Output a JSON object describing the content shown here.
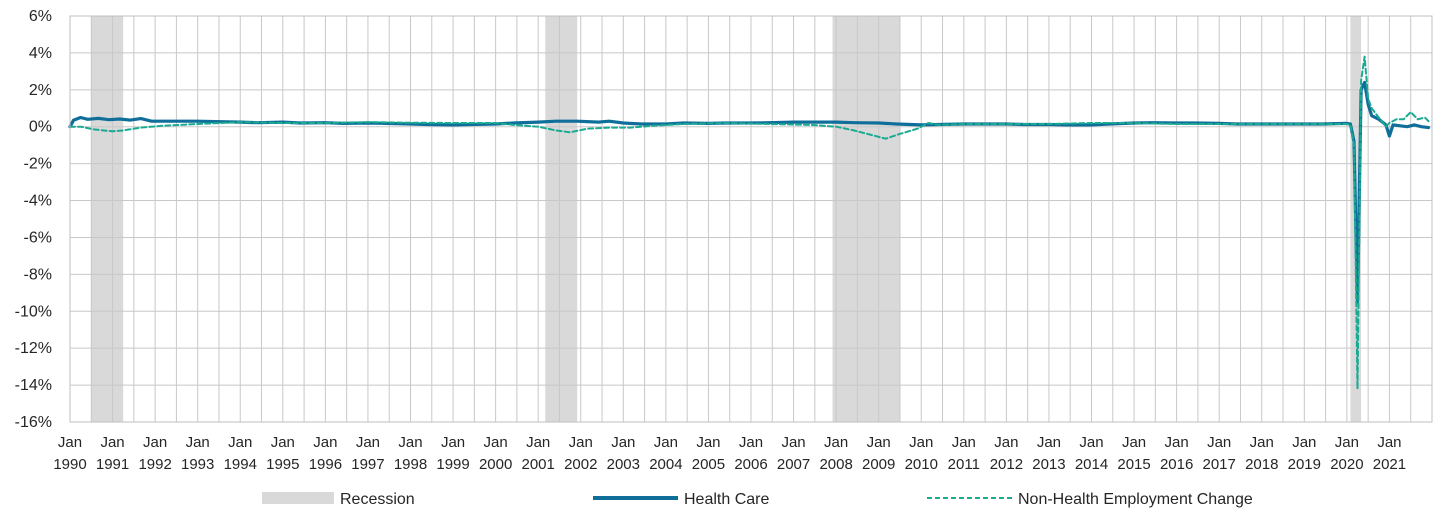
{
  "chart_data": {
    "type": "line",
    "title": "",
    "xlabel": "",
    "ylabel": "",
    "x_range": [
      "1990-01",
      "2021-12"
    ],
    "ylim": [
      -16,
      6
    ],
    "y_ticks": [
      6,
      4,
      2,
      0,
      -2,
      -4,
      -6,
      -8,
      -10,
      -12,
      -14,
      -16
    ],
    "y_tick_labels": [
      "6%",
      "4%",
      "2%",
      "0%",
      "-2%",
      "-4%",
      "-6%",
      "-8%",
      "-10%",
      "-12%",
      "-14%",
      "-16%"
    ],
    "x_tick_labels": [
      {
        "month": "Jan",
        "year": "1990"
      },
      {
        "month": "Jan",
        "year": "1991"
      },
      {
        "month": "Jan",
        "year": "1992"
      },
      {
        "month": "Jan",
        "year": "1993"
      },
      {
        "month": "Jan",
        "year": "1994"
      },
      {
        "month": "Jan",
        "year": "1995"
      },
      {
        "month": "Jan",
        "year": "1996"
      },
      {
        "month": "Jan",
        "year": "1997"
      },
      {
        "month": "Jan",
        "year": "1998"
      },
      {
        "month": "Jan",
        "year": "1999"
      },
      {
        "month": "Jan",
        "year": "2000"
      },
      {
        "month": "Jan",
        "year": "2001"
      },
      {
        "month": "Jan",
        "year": "2002"
      },
      {
        "month": "Jan",
        "year": "2003"
      },
      {
        "month": "Jan",
        "year": "2004"
      },
      {
        "month": "Jan",
        "year": "2005"
      },
      {
        "month": "Jan",
        "year": "2006"
      },
      {
        "month": "Jan",
        "year": "2007"
      },
      {
        "month": "Jan",
        "year": "2008"
      },
      {
        "month": "Jan",
        "year": "2009"
      },
      {
        "month": "Jan",
        "year": "2010"
      },
      {
        "month": "Jan",
        "year": "2011"
      },
      {
        "month": "Jan",
        "year": "2012"
      },
      {
        "month": "Jan",
        "year": "2013"
      },
      {
        "month": "Jan",
        "year": "2014"
      },
      {
        "month": "Jan",
        "year": "2015"
      },
      {
        "month": "Jan",
        "year": "2016"
      },
      {
        "month": "Jan",
        "year": "2017"
      },
      {
        "month": "Jan",
        "year": "2018"
      },
      {
        "month": "Jan",
        "year": "2019"
      },
      {
        "month": "Jan",
        "year": "2020"
      },
      {
        "month": "Jan",
        "year": "2021"
      }
    ],
    "grid": true,
    "legend_placement": "bottom",
    "recessions": [
      {
        "start": "1990-07",
        "end": "1991-03"
      },
      {
        "start": "2001-03",
        "end": "2001-11"
      },
      {
        "start": "2007-12",
        "end": "2009-06"
      },
      {
        "start": "2020-02",
        "end": "2020-04"
      }
    ],
    "legend": [
      {
        "label": "Recession",
        "type": "band",
        "color": "#d9d9d9"
      },
      {
        "label": "Health Care",
        "type": "solid",
        "color": "#0f6f9a"
      },
      {
        "label": "Non-Health Employment Change",
        "type": "dashed",
        "color": "#1aaa92"
      }
    ],
    "series": [
      {
        "name": "Health Care",
        "color": "#0f6f9a",
        "style": "solid",
        "points": [
          [
            "1990-01",
            0.0
          ],
          [
            "1990-02",
            0.35
          ],
          [
            "1990-04",
            0.5
          ],
          [
            "1990-06",
            0.4
          ],
          [
            "1990-09",
            0.45
          ],
          [
            "1990-12",
            0.38
          ],
          [
            "1991-03",
            0.42
          ],
          [
            "1991-06",
            0.36
          ],
          [
            "1991-09",
            0.44
          ],
          [
            "1991-12",
            0.3
          ],
          [
            "1992-06",
            0.3
          ],
          [
            "1993-01",
            0.3
          ],
          [
            "1993-06",
            0.28
          ],
          [
            "1994-01",
            0.25
          ],
          [
            "1994-06",
            0.22
          ],
          [
            "1995-01",
            0.25
          ],
          [
            "1995-06",
            0.2
          ],
          [
            "1996-01",
            0.22
          ],
          [
            "1996-06",
            0.18
          ],
          [
            "1997-01",
            0.2
          ],
          [
            "1997-06",
            0.18
          ],
          [
            "1998-01",
            0.15
          ],
          [
            "1998-06",
            0.12
          ],
          [
            "1999-01",
            0.1
          ],
          [
            "1999-06",
            0.12
          ],
          [
            "2000-01",
            0.15
          ],
          [
            "2000-06",
            0.2
          ],
          [
            "2001-01",
            0.25
          ],
          [
            "2001-06",
            0.3
          ],
          [
            "2001-12",
            0.3
          ],
          [
            "2002-06",
            0.25
          ],
          [
            "2002-09",
            0.3
          ],
          [
            "2003-01",
            0.2
          ],
          [
            "2003-06",
            0.15
          ],
          [
            "2004-01",
            0.15
          ],
          [
            "2004-06",
            0.2
          ],
          [
            "2005-01",
            0.18
          ],
          [
            "2005-06",
            0.2
          ],
          [
            "2006-01",
            0.2
          ],
          [
            "2006-06",
            0.22
          ],
          [
            "2007-01",
            0.25
          ],
          [
            "2007-06",
            0.25
          ],
          [
            "2008-01",
            0.25
          ],
          [
            "2008-06",
            0.22
          ],
          [
            "2009-01",
            0.2
          ],
          [
            "2009-06",
            0.15
          ],
          [
            "2010-01",
            0.1
          ],
          [
            "2010-06",
            0.12
          ],
          [
            "2011-01",
            0.15
          ],
          [
            "2011-06",
            0.15
          ],
          [
            "2012-01",
            0.15
          ],
          [
            "2012-06",
            0.12
          ],
          [
            "2013-01",
            0.12
          ],
          [
            "2013-06",
            0.1
          ],
          [
            "2014-01",
            0.1
          ],
          [
            "2014-06",
            0.15
          ],
          [
            "2015-01",
            0.2
          ],
          [
            "2015-06",
            0.22
          ],
          [
            "2016-01",
            0.2
          ],
          [
            "2016-06",
            0.2
          ],
          [
            "2017-01",
            0.18
          ],
          [
            "2017-06",
            0.15
          ],
          [
            "2018-01",
            0.15
          ],
          [
            "2018-06",
            0.15
          ],
          [
            "2019-01",
            0.15
          ],
          [
            "2019-06",
            0.15
          ],
          [
            "2020-01",
            0.18
          ],
          [
            "2020-02",
            0.15
          ],
          [
            "2020-03",
            -0.8
          ],
          [
            "2020-04",
            -9.5
          ],
          [
            "2020-05",
            2.0
          ],
          [
            "2020-06",
            2.4
          ],
          [
            "2020-07",
            1.2
          ],
          [
            "2020-08",
            0.6
          ],
          [
            "2020-10",
            0.4
          ],
          [
            "2020-12",
            0.1
          ],
          [
            "2021-01",
            -0.5
          ],
          [
            "2021-02",
            0.1
          ],
          [
            "2021-04",
            0.05
          ],
          [
            "2021-06",
            0.0
          ],
          [
            "2021-08",
            0.1
          ],
          [
            "2021-10",
            0.0
          ],
          [
            "2021-12",
            -0.05
          ]
        ]
      },
      {
        "name": "Non-Health Employment Change",
        "color": "#1aaa92",
        "style": "dashed",
        "points": [
          [
            "1990-01",
            0.0
          ],
          [
            "1990-04",
            0.0
          ],
          [
            "1990-08",
            -0.15
          ],
          [
            "1991-01",
            -0.25
          ],
          [
            "1991-04",
            -0.2
          ],
          [
            "1991-09",
            -0.05
          ],
          [
            "1992-03",
            0.05
          ],
          [
            "1993-01",
            0.15
          ],
          [
            "1994-01",
            0.25
          ],
          [
            "1995-01",
            0.2
          ],
          [
            "1996-01",
            0.2
          ],
          [
            "1997-01",
            0.25
          ],
          [
            "1998-01",
            0.22
          ],
          [
            "1999-01",
            0.2
          ],
          [
            "2000-01",
            0.2
          ],
          [
            "2000-06",
            0.1
          ],
          [
            "2001-01",
            0.0
          ],
          [
            "2001-06",
            -0.2
          ],
          [
            "2001-10",
            -0.3
          ],
          [
            "2002-03",
            -0.1
          ],
          [
            "2002-09",
            -0.05
          ],
          [
            "2003-03",
            -0.05
          ],
          [
            "2003-09",
            0.05
          ],
          [
            "2004-06",
            0.15
          ],
          [
            "2005-06",
            0.2
          ],
          [
            "2006-06",
            0.15
          ],
          [
            "2007-06",
            0.1
          ],
          [
            "2008-01",
            0.0
          ],
          [
            "2008-06",
            -0.2
          ],
          [
            "2008-11",
            -0.45
          ],
          [
            "2009-03",
            -0.65
          ],
          [
            "2009-06",
            -0.45
          ],
          [
            "2009-12",
            -0.1
          ],
          [
            "2010-03",
            0.2
          ],
          [
            "2010-06",
            0.1
          ],
          [
            "2011-01",
            0.15
          ],
          [
            "2012-01",
            0.15
          ],
          [
            "2013-01",
            0.15
          ],
          [
            "2014-01",
            0.2
          ],
          [
            "2015-01",
            0.2
          ],
          [
            "2016-01",
            0.15
          ],
          [
            "2017-01",
            0.15
          ],
          [
            "2018-01",
            0.15
          ],
          [
            "2019-01",
            0.15
          ],
          [
            "2020-01",
            0.15
          ],
          [
            "2020-02",
            0.1
          ],
          [
            "2020-03",
            -1.0
          ],
          [
            "2020-04",
            -14.2
          ],
          [
            "2020-05",
            2.5
          ],
          [
            "2020-06",
            3.8
          ],
          [
            "2020-07",
            1.5
          ],
          [
            "2020-08",
            1.0
          ],
          [
            "2020-10",
            0.5
          ],
          [
            "2020-12",
            0.0
          ],
          [
            "2021-01",
            0.2
          ],
          [
            "2021-03",
            0.4
          ],
          [
            "2021-05",
            0.4
          ],
          [
            "2021-07",
            0.8
          ],
          [
            "2021-09",
            0.4
          ],
          [
            "2021-11",
            0.5
          ],
          [
            "2021-12",
            0.3
          ]
        ]
      }
    ]
  }
}
